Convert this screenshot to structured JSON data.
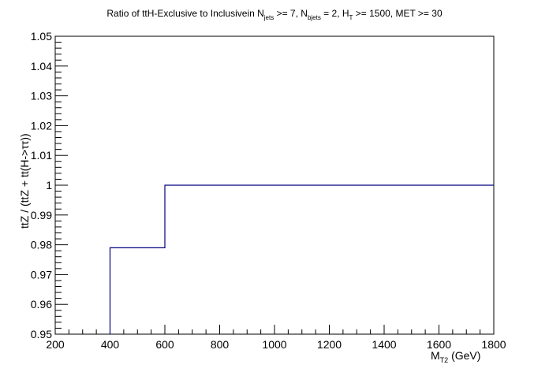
{
  "chart_data": {
    "type": "line",
    "title_main": "Ratio of ttH-Exclusive to Inclusivein N",
    "title_sub_jets": "jets",
    "title_mid_1": " >= 7, N",
    "title_sub_bjets": "bjets",
    "title_mid_2": " = 2, H",
    "title_sub_T": "T",
    "title_end": " >= 1500, MET >= 30",
    "xlabel_main": "M",
    "xlabel_sub": "T2",
    "xlabel_unit": " (GeV)",
    "ylabel": "ttZ / (ttZ + tt(H->ττ))",
    "xlim": [
      200,
      1800
    ],
    "ylim": [
      0.95,
      1.05
    ],
    "xticks": [
      200,
      400,
      600,
      800,
      1000,
      1200,
      1400,
      1600,
      1800
    ],
    "xtick_labels": [
      "200",
      "400",
      "600",
      "800",
      "1000",
      "1200",
      "1400",
      "1600",
      "1800"
    ],
    "yticks": [
      0.95,
      0.96,
      0.97,
      0.98,
      0.99,
      1.0,
      1.01,
      1.02,
      1.03,
      1.04,
      1.05
    ],
    "ytick_labels": [
      "0.95",
      "0.96",
      "0.97",
      "0.98",
      "0.99",
      "1",
      "1.01",
      "1.02",
      "1.03",
      "1.04",
      "1.05"
    ],
    "series": [
      {
        "bins": [
          {
            "x_low": 400,
            "x_high": 600,
            "y": 0.979
          },
          {
            "x_low": 600,
            "x_high": 1800,
            "y": 1.0
          }
        ]
      }
    ],
    "line_color": "#000080",
    "grid": false
  }
}
